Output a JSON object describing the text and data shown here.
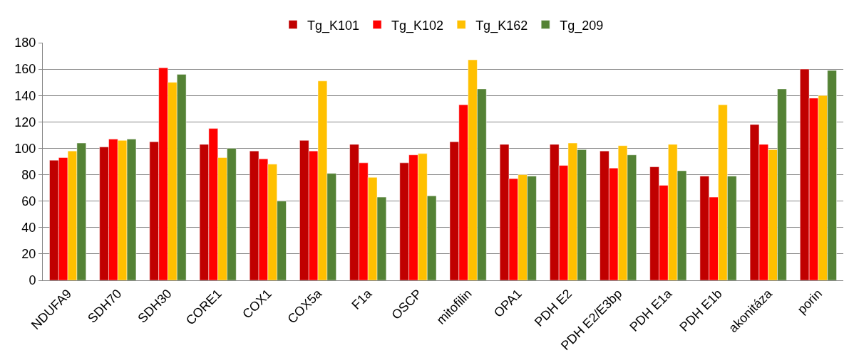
{
  "chart_data": {
    "type": "bar",
    "categories": [
      "NDUFA9",
      "SDH70",
      "SDH30",
      "CORE1",
      "COX1",
      "COX5a",
      "F1a",
      "OSCP",
      "mitofilin",
      "OPA1",
      "PDH E2",
      "PDH E2/E3bp",
      "PDH E1a",
      "PDH E1b",
      "akonitáza",
      "porin"
    ],
    "series": [
      {
        "name": "Tg_K101",
        "color": "#c00000",
        "values": [
          91,
          101,
          105,
          103,
          98,
          106,
          103,
          89,
          105,
          103,
          103,
          98,
          86,
          79,
          118,
          160
        ]
      },
      {
        "name": "Tg_K102",
        "color": "#ff0000",
        "values": [
          93,
          107,
          161,
          115,
          92,
          98,
          89,
          95,
          133,
          77,
          87,
          85,
          72,
          63,
          103,
          138
        ]
      },
      {
        "name": "Tg_K162",
        "color": "#ffc000",
        "values": [
          98,
          106,
          150,
          93,
          88,
          151,
          78,
          96,
          167,
          80,
          104,
          102,
          103,
          133,
          99,
          140
        ]
      },
      {
        "name": "Tg_209",
        "color": "#548235",
        "values": [
          104,
          107,
          156,
          100,
          60,
          81,
          63,
          64,
          145,
          79,
          99,
          95,
          83,
          79,
          145,
          159
        ]
      }
    ],
    "ylim": [
      0,
      180
    ],
    "yticks": [
      0,
      20,
      40,
      60,
      80,
      100,
      120,
      140,
      160,
      180
    ],
    "grid": "y",
    "legend": "top"
  }
}
